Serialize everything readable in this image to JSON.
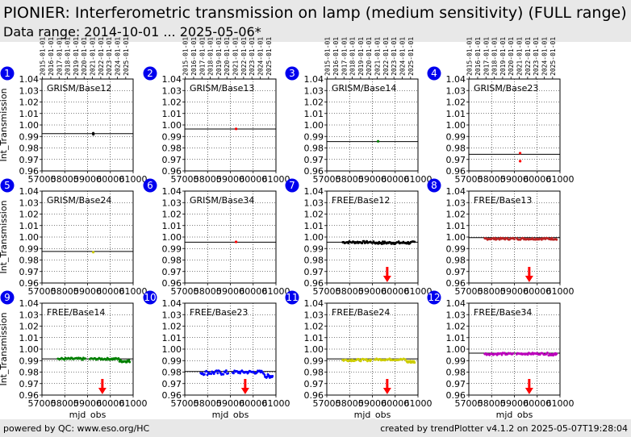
{
  "header": {
    "title": "PIONIER: Interferometric transmission on lamp (medium sensitivity) (FULL range)",
    "subtitle": "Data range: 2014-10-01 ... 2025-05-06*"
  },
  "footer": {
    "left": "powered by QC: www.eso.org/HC",
    "right": "created by trendPlotter v4.1.2 on 2025-05-07T19:28:04"
  },
  "colors": {
    "header_bg": "#e8e8e8",
    "badge": "#0000ee",
    "arrow": "#ff0000",
    "series": [
      "#000000",
      "#ff0000",
      "#008000",
      "#0000ff",
      "#cccc00",
      "#bb00bb"
    ]
  },
  "date_tick_labels": [
    "2015-01-01",
    "2016-01-01",
    "2017-01-01",
    "2018-01-01",
    "2019-01-01",
    "2020-01-01",
    "2021-01-01",
    "2022-01-01",
    "2023-01-01",
    "2024-01-01",
    "2025-01-01"
  ],
  "chart_data": [
    {
      "id": 1,
      "type": "scatter",
      "label": "GRISM/Base12",
      "color": "#000000",
      "ref": 0.9925,
      "ylabel": "Int_Transmission",
      "xlabel": "",
      "y_ticks": [
        "0.96",
        "0.97",
        "0.98",
        "0.99",
        "1.00",
        "1.01",
        "1.02",
        "1.03",
        "1.04"
      ],
      "x_ticks": [
        "57000",
        "58000",
        "59000",
        "60000",
        "61000"
      ],
      "top_dates": true,
      "ylim": [
        0.96,
        1.04
      ],
      "xlim": [
        57000,
        61000
      ],
      "points": [
        [
          59250,
          0.9928
        ],
        [
          59255,
          0.9918
        ]
      ],
      "segments": [],
      "arrow_x": null
    },
    {
      "id": 2,
      "type": "scatter",
      "label": "GRISM/Base13",
      "color": "#ff0000",
      "ref": 0.9965,
      "ylabel": "",
      "xlabel": "",
      "y_ticks": [
        "0.96",
        "0.97",
        "0.98",
        "0.99",
        "1.00",
        "1.01",
        "1.02",
        "1.03",
        "1.04"
      ],
      "x_ticks": [
        "57000",
        "58000",
        "59000",
        "60000",
        "61000"
      ],
      "top_dates": true,
      "ylim": [
        0.96,
        1.04
      ],
      "xlim": [
        57000,
        61000
      ],
      "points": [
        [
          59250,
          0.9966
        ]
      ],
      "segments": [],
      "arrow_x": null
    },
    {
      "id": 3,
      "type": "scatter",
      "label": "GRISM/Base14",
      "color": "#008000",
      "ref": 0.9855,
      "ylabel": "",
      "xlabel": "",
      "y_ticks": [
        "0.96",
        "0.97",
        "0.98",
        "0.99",
        "1.00",
        "1.01",
        "1.02",
        "1.03",
        "1.04"
      ],
      "x_ticks": [
        "57000",
        "58000",
        "59000",
        "60000",
        "61000"
      ],
      "top_dates": true,
      "ylim": [
        0.96,
        1.04
      ],
      "xlim": [
        57000,
        61000
      ],
      "points": [
        [
          59250,
          0.9858
        ]
      ],
      "segments": [],
      "arrow_x": null
    },
    {
      "id": 4,
      "type": "scatter",
      "label": "GRISM/Base23",
      "color": "#ff0000",
      "ref": 0.9745,
      "ylabel": "",
      "xlabel": "",
      "y_ticks": [
        "0.96",
        "0.97",
        "0.98",
        "0.99",
        "1.00",
        "1.01",
        "1.02",
        "1.03",
        "1.04"
      ],
      "x_ticks": [
        "57000",
        "58000",
        "59000",
        "60000",
        "61000"
      ],
      "top_dates": true,
      "ylim": [
        0.96,
        1.04
      ],
      "xlim": [
        57000,
        61000
      ],
      "points": [
        [
          59250,
          0.9755
        ],
        [
          59252,
          0.9685
        ]
      ],
      "segments": [],
      "arrow_x": null
    },
    {
      "id": 5,
      "type": "scatter",
      "label": "GRISM/Base24",
      "color": "#cccc00",
      "ref": 0.9875,
      "ylabel": "Int_Transmission",
      "xlabel": "",
      "y_ticks": [
        "0.96",
        "0.97",
        "0.98",
        "0.99",
        "1.00",
        "1.01",
        "1.02",
        "1.03",
        "1.04"
      ],
      "x_ticks": [
        "57000",
        "58000",
        "59000",
        "60000",
        "61000"
      ],
      "top_dates": false,
      "ylim": [
        0.96,
        1.04
      ],
      "xlim": [
        57000,
        61000
      ],
      "points": [
        [
          59250,
          0.9868
        ]
      ],
      "segments": [],
      "arrow_x": null
    },
    {
      "id": 6,
      "type": "scatter",
      "label": "GRISM/Base34",
      "color": "#ff0000",
      "ref": 0.9955,
      "ylabel": "",
      "xlabel": "",
      "y_ticks": [
        "0.96",
        "0.97",
        "0.98",
        "0.99",
        "1.00",
        "1.01",
        "1.02",
        "1.03",
        "1.04"
      ],
      "x_ticks": [
        "57000",
        "58000",
        "59000",
        "60000",
        "61000"
      ],
      "top_dates": false,
      "ylim": [
        0.96,
        1.04
      ],
      "xlim": [
        57000,
        61000
      ],
      "points": [
        [
          59250,
          0.9958
        ]
      ],
      "segments": [],
      "arrow_x": null
    },
    {
      "id": 7,
      "type": "scatter",
      "label": "FREE/Base12",
      "color": "#000000",
      "ref": 0.9955,
      "ylabel": "",
      "xlabel": "",
      "y_ticks": [
        "0.96",
        "0.97",
        "0.98",
        "0.99",
        "1.00",
        "1.01",
        "1.02",
        "1.03",
        "1.04"
      ],
      "x_ticks": [
        "57000",
        "58000",
        "59000",
        "60000",
        "61000"
      ],
      "top_dates": false,
      "ylim": [
        0.96,
        1.04
      ],
      "xlim": [
        57000,
        61000
      ],
      "points": [],
      "segments": [
        [
          57700,
          59000,
          0.9955,
          0.0012
        ],
        [
          59050,
          60850,
          0.995,
          0.0015
        ]
      ],
      "arrow_x": 59650
    },
    {
      "id": 8,
      "type": "scatter",
      "label": "FREE/Base13",
      "color": "#bb2222",
      "ref": 0.9995,
      "ylabel": "",
      "xlabel": "",
      "y_ticks": [
        "0.96",
        "0.97",
        "0.98",
        "0.99",
        "1.00",
        "1.01",
        "1.02",
        "1.03",
        "1.04"
      ],
      "x_ticks": [
        "57000",
        "58000",
        "59000",
        "60000",
        "61000"
      ],
      "top_dates": false,
      "ylim": [
        0.96,
        1.04
      ],
      "xlim": [
        57000,
        61000
      ],
      "points": [],
      "segments": [
        [
          57700,
          59000,
          0.9985,
          0.001
        ],
        [
          59100,
          60850,
          0.9985,
          0.001
        ]
      ],
      "arrow_x": 59650
    },
    {
      "id": 9,
      "type": "scatter",
      "label": "FREE/Base14",
      "color": "#008000",
      "ref": 0.9915,
      "ylabel": "Int_Transmission",
      "xlabel": "mjd_obs",
      "y_ticks": [
        "0.96",
        "0.97",
        "0.98",
        "0.99",
        "1.00",
        "1.01",
        "1.02",
        "1.03",
        "1.04"
      ],
      "x_ticks": [
        "57000",
        "58000",
        "59000",
        "60000",
        "61000"
      ],
      "top_dates": false,
      "ylim": [
        0.96,
        1.04
      ],
      "xlim": [
        57000,
        61000
      ],
      "points": [],
      "segments": [
        [
          57700,
          58900,
          0.9915,
          0.0012
        ],
        [
          59100,
          60400,
          0.9915,
          0.001
        ],
        [
          60400,
          60850,
          0.9895,
          0.0012
        ]
      ],
      "arrow_x": 59650
    },
    {
      "id": 10,
      "type": "scatter",
      "label": "FREE/Base23",
      "color": "#0000ff",
      "ref": 0.9805,
      "ylabel": "",
      "xlabel": "mjd_obs",
      "y_ticks": [
        "0.96",
        "0.97",
        "0.98",
        "0.99",
        "1.00",
        "1.01",
        "1.02",
        "1.03",
        "1.04"
      ],
      "x_ticks": [
        "57000",
        "58000",
        "59000",
        "60000",
        "61000"
      ],
      "top_dates": false,
      "ylim": [
        0.96,
        1.04
      ],
      "xlim": [
        57000,
        61000
      ],
      "points": [],
      "segments": [
        [
          57700,
          58900,
          0.9795,
          0.0025
        ],
        [
          59100,
          60450,
          0.98,
          0.0018
        ],
        [
          60500,
          60850,
          0.9765,
          0.002
        ]
      ],
      "arrow_x": 59650
    },
    {
      "id": 11,
      "type": "scatter",
      "label": "FREE/Base24",
      "color": "#cccc00",
      "ref": 0.9915,
      "ylabel": "",
      "xlabel": "mjd_obs",
      "y_ticks": [
        "0.96",
        "0.97",
        "0.98",
        "0.99",
        "1.00",
        "1.01",
        "1.02",
        "1.03",
        "1.04"
      ],
      "x_ticks": [
        "57000",
        "58000",
        "59000",
        "60000",
        "61000"
      ],
      "top_dates": false,
      "ylim": [
        0.96,
        1.04
      ],
      "xlim": [
        57000,
        61000
      ],
      "points": [],
      "segments": [
        [
          57700,
          58950,
          0.9905,
          0.0012
        ],
        [
          59100,
          60450,
          0.991,
          0.001
        ],
        [
          60500,
          60850,
          0.989,
          0.0012
        ]
      ],
      "arrow_x": 59650
    },
    {
      "id": 12,
      "type": "scatter",
      "label": "FREE/Base34",
      "color": "#bb00bb",
      "ref": 0.9965,
      "ylabel": "",
      "xlabel": "mjd_obs",
      "y_ticks": [
        "0.96",
        "0.97",
        "0.98",
        "0.99",
        "1.00",
        "1.01",
        "1.02",
        "1.03",
        "1.04"
      ],
      "x_ticks": [
        "57000",
        "58000",
        "59000",
        "60000",
        "61000"
      ],
      "top_dates": false,
      "ylim": [
        0.96,
        1.04
      ],
      "xlim": [
        57000,
        61000
      ],
      "points": [],
      "segments": [
        [
          57700,
          58950,
          0.9958,
          0.0012
        ],
        [
          59100,
          60450,
          0.996,
          0.001
        ],
        [
          60500,
          60850,
          0.9955,
          0.0012
        ]
      ],
      "arrow_x": 59650
    }
  ]
}
